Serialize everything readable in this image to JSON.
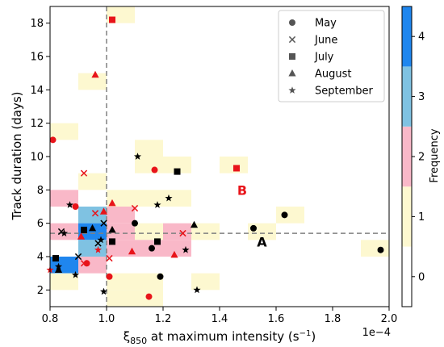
{
  "chart_data": {
    "type": "scatter",
    "xlabel_main": "ξ",
    "xlabel_sub": "850",
    "xlabel_rest": " at maximum intensity (s",
    "xlabel_sup": "−1",
    "xlabel_close": ")",
    "x_multiplier_label": "1e−4",
    "ylabel": "Track duration (days)",
    "xlim": [
      0.8,
      2.0
    ],
    "ylim": [
      1,
      19
    ],
    "x_ticks": [
      {
        "value": 0.8,
        "label": "0.8"
      },
      {
        "value": 1.0,
        "label": "1.0"
      },
      {
        "value": 1.2,
        "label": "1.2"
      },
      {
        "value": 1.4,
        "label": "1.4"
      },
      {
        "value": 1.6,
        "label": "1.6"
      },
      {
        "value": 1.8,
        "label": "1.8"
      },
      {
        "value": 2.0,
        "label": "2.0"
      }
    ],
    "y_ticks": [
      {
        "value": 2,
        "label": "2"
      },
      {
        "value": 4,
        "label": "4"
      },
      {
        "value": 6,
        "label": "6"
      },
      {
        "value": 8,
        "label": "8"
      },
      {
        "value": 10,
        "label": "10"
      },
      {
        "value": 12,
        "label": "12"
      },
      {
        "value": 14,
        "label": "14"
      },
      {
        "value": 16,
        "label": "16"
      },
      {
        "value": 18,
        "label": "18"
      }
    ],
    "ref_lines": {
      "x": 1.0,
      "y": 5.4
    },
    "colors": {
      "black": "#000000",
      "red": "#e8141a"
    },
    "colorbar": {
      "label": "Frequency",
      "ticks": [
        {
          "value": 0,
          "label": "0"
        },
        {
          "value": 1,
          "label": "1"
        },
        {
          "value": 2,
          "label": "2"
        },
        {
          "value": 3,
          "label": "3"
        },
        {
          "value": 4,
          "label": "4"
        }
      ],
      "range": [
        -0.5,
        4.5
      ],
      "bands": [
        {
          "from": -0.5,
          "to": 0.5,
          "color": "#ffffff"
        },
        {
          "from": 0.5,
          "to": 1.5,
          "color": "#fdf8d0"
        },
        {
          "from": 1.5,
          "to": 2.5,
          "color": "#f9b8c8"
        },
        {
          "from": 2.5,
          "to": 3.5,
          "color": "#7fc2e2"
        },
        {
          "from": 3.5,
          "to": 4.5,
          "color": "#1f86ee"
        }
      ]
    },
    "heatmap": {
      "bin_width_x": 0.1,
      "bin_height_y": 1.0,
      "cells": [
        {
          "x": 1.0,
          "y": 18,
          "v": 1
        },
        {
          "x": 0.9,
          "y": 14,
          "v": 1
        },
        {
          "x": 0.8,
          "y": 11,
          "v": 1
        },
        {
          "x": 1.1,
          "y": 10,
          "v": 1
        },
        {
          "x": 1.1,
          "y": 9,
          "v": 1
        },
        {
          "x": 1.2,
          "y": 9,
          "v": 1
        },
        {
          "x": 1.4,
          "y": 9,
          "v": 1
        },
        {
          "x": 0.9,
          "y": 8,
          "v": 1
        },
        {
          "x": 0.8,
          "y": 7,
          "v": 2
        },
        {
          "x": 1.0,
          "y": 7,
          "v": 1
        },
        {
          "x": 1.1,
          "y": 7,
          "v": 1
        },
        {
          "x": 1.2,
          "y": 7,
          "v": 1
        },
        {
          "x": 0.9,
          "y": 6,
          "v": 3
        },
        {
          "x": 1.0,
          "y": 6,
          "v": 2
        },
        {
          "x": 1.6,
          "y": 6,
          "v": 1
        },
        {
          "x": 0.8,
          "y": 5,
          "v": 2
        },
        {
          "x": 0.9,
          "y": 5,
          "v": 4
        },
        {
          "x": 1.0,
          "y": 5,
          "v": 2
        },
        {
          "x": 1.1,
          "y": 5,
          "v": 1
        },
        {
          "x": 1.2,
          "y": 5,
          "v": 2
        },
        {
          "x": 1.3,
          "y": 5,
          "v": 1
        },
        {
          "x": 1.5,
          "y": 5,
          "v": 1
        },
        {
          "x": 0.9,
          "y": 4,
          "v": 3
        },
        {
          "x": 1.0,
          "y": 4,
          "v": 2
        },
        {
          "x": 1.1,
          "y": 4,
          "v": 2
        },
        {
          "x": 1.2,
          "y": 4,
          "v": 2
        },
        {
          "x": 1.9,
          "y": 4,
          "v": 1
        },
        {
          "x": 0.8,
          "y": 3,
          "v": 4
        },
        {
          "x": 0.9,
          "y": 3,
          "v": 2
        },
        {
          "x": 0.8,
          "y": 2,
          "v": 1
        },
        {
          "x": 1.0,
          "y": 2,
          "v": 1
        },
        {
          "x": 1.1,
          "y": 2,
          "v": 1
        },
        {
          "x": 1.3,
          "y": 2,
          "v": 1
        },
        {
          "x": 1.0,
          "y": 1,
          "v": 1
        },
        {
          "x": 1.1,
          "y": 1,
          "v": 1
        }
      ]
    },
    "legend": {
      "placement": "top-right",
      "items": [
        {
          "marker": "circle",
          "label": "May"
        },
        {
          "marker": "x",
          "label": "June"
        },
        {
          "marker": "square",
          "label": "July"
        },
        {
          "marker": "triangle",
          "label": "August"
        },
        {
          "marker": "star",
          "label": "September"
        }
      ]
    },
    "points": [
      {
        "x": 0.81,
        "y": 11.0,
        "marker": "circle",
        "color": "red"
      },
      {
        "x": 0.89,
        "y": 7.0,
        "marker": "circle",
        "color": "red"
      },
      {
        "x": 0.93,
        "y": 3.6,
        "marker": "circle",
        "color": "red"
      },
      {
        "x": 1.01,
        "y": 2.8,
        "marker": "circle",
        "color": "red"
      },
      {
        "x": 1.15,
        "y": 1.6,
        "marker": "circle",
        "color": "red"
      },
      {
        "x": 1.17,
        "y": 9.2,
        "marker": "circle",
        "color": "red"
      },
      {
        "x": 1.1,
        "y": 6.0,
        "marker": "circle",
        "color": "black"
      },
      {
        "x": 1.16,
        "y": 4.5,
        "marker": "circle",
        "color": "black"
      },
      {
        "x": 1.19,
        "y": 2.8,
        "marker": "circle",
        "color": "black"
      },
      {
        "x": 1.52,
        "y": 5.7,
        "marker": "circle",
        "color": "black"
      },
      {
        "x": 1.63,
        "y": 6.5,
        "marker": "circle",
        "color": "black"
      },
      {
        "x": 1.97,
        "y": 4.4,
        "marker": "circle",
        "color": "black"
      },
      {
        "x": 0.84,
        "y": 5.5,
        "marker": "x",
        "color": "black"
      },
      {
        "x": 0.9,
        "y": 4.0,
        "marker": "x",
        "color": "black"
      },
      {
        "x": 0.97,
        "y": 4.8,
        "marker": "x",
        "color": "black"
      },
      {
        "x": 0.99,
        "y": 6.0,
        "marker": "x",
        "color": "black"
      },
      {
        "x": 0.92,
        "y": 9.0,
        "marker": "x",
        "color": "red"
      },
      {
        "x": 0.96,
        "y": 6.6,
        "marker": "x",
        "color": "red"
      },
      {
        "x": 0.92,
        "y": 3.6,
        "marker": "x",
        "color": "red"
      },
      {
        "x": 1.1,
        "y": 6.9,
        "marker": "x",
        "color": "red"
      },
      {
        "x": 1.27,
        "y": 5.4,
        "marker": "x",
        "color": "red"
      },
      {
        "x": 1.01,
        "y": 3.9,
        "marker": "x",
        "color": "red"
      },
      {
        "x": 0.82,
        "y": 3.9,
        "marker": "square",
        "color": "black"
      },
      {
        "x": 0.92,
        "y": 5.6,
        "marker": "square",
        "color": "black"
      },
      {
        "x": 1.02,
        "y": 4.9,
        "marker": "square",
        "color": "black"
      },
      {
        "x": 1.18,
        "y": 4.9,
        "marker": "square",
        "color": "black"
      },
      {
        "x": 1.25,
        "y": 9.1,
        "marker": "square",
        "color": "black"
      },
      {
        "x": 1.02,
        "y": 18.2,
        "marker": "square",
        "color": "red"
      },
      {
        "x": 1.46,
        "y": 9.3,
        "marker": "square",
        "color": "red"
      },
      {
        "x": 0.95,
        "y": 5.7,
        "marker": "triangle",
        "color": "black"
      },
      {
        "x": 0.83,
        "y": 3.2,
        "marker": "triangle",
        "color": "black"
      },
      {
        "x": 1.02,
        "y": 5.6,
        "marker": "triangle",
        "color": "black"
      },
      {
        "x": 1.31,
        "y": 5.9,
        "marker": "triangle",
        "color": "black"
      },
      {
        "x": 0.96,
        "y": 14.9,
        "marker": "triangle",
        "color": "red"
      },
      {
        "x": 0.91,
        "y": 5.2,
        "marker": "triangle",
        "color": "red"
      },
      {
        "x": 0.99,
        "y": 6.7,
        "marker": "triangle",
        "color": "red"
      },
      {
        "x": 1.02,
        "y": 7.2,
        "marker": "triangle",
        "color": "red"
      },
      {
        "x": 1.09,
        "y": 4.3,
        "marker": "triangle",
        "color": "red"
      },
      {
        "x": 1.24,
        "y": 4.1,
        "marker": "triangle",
        "color": "red"
      },
      {
        "x": 0.87,
        "y": 7.1,
        "marker": "star",
        "color": "black"
      },
      {
        "x": 0.85,
        "y": 5.4,
        "marker": "star",
        "color": "black"
      },
      {
        "x": 0.83,
        "y": 3.4,
        "marker": "star",
        "color": "black"
      },
      {
        "x": 0.89,
        "y": 2.9,
        "marker": "star",
        "color": "black"
      },
      {
        "x": 0.98,
        "y": 5.0,
        "marker": "star",
        "color": "black"
      },
      {
        "x": 0.99,
        "y": 1.9,
        "marker": "star",
        "color": "black"
      },
      {
        "x": 1.11,
        "y": 10.0,
        "marker": "star",
        "color": "black"
      },
      {
        "x": 1.18,
        "y": 7.1,
        "marker": "star",
        "color": "black"
      },
      {
        "x": 1.22,
        "y": 7.5,
        "marker": "star",
        "color": "black"
      },
      {
        "x": 1.28,
        "y": 4.4,
        "marker": "star",
        "color": "black"
      },
      {
        "x": 1.32,
        "y": 2.0,
        "marker": "star",
        "color": "black"
      },
      {
        "x": 0.97,
        "y": 4.4,
        "marker": "star",
        "color": "red"
      },
      {
        "x": 0.8,
        "y": 3.2,
        "marker": "star",
        "color": "red"
      }
    ],
    "annotations": [
      {
        "text": "A",
        "x": 1.55,
        "y": 4.6,
        "color": "#000000"
      },
      {
        "text": "B",
        "x": 1.48,
        "y": 7.7,
        "color": "#e8141a"
      }
    ]
  }
}
